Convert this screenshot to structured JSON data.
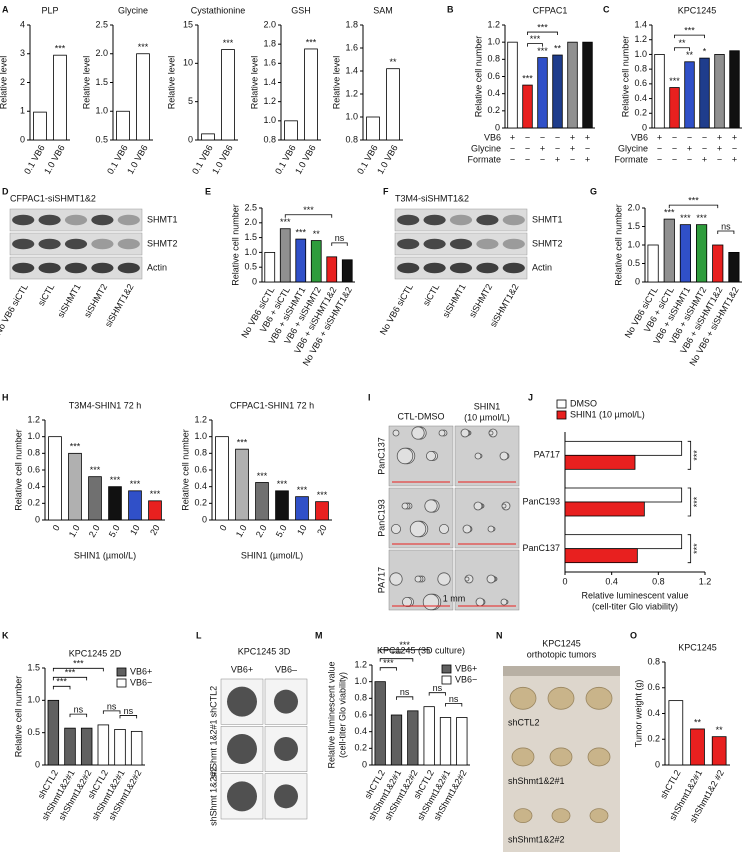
{
  "chart_data": [
    {
      "type": "bar",
      "panel": "A",
      "title": "PLP",
      "ylabel": "Relative level",
      "categories": [
        "0.1 VB6",
        "1.0 VB6"
      ],
      "values": [
        0.97,
        2.95
      ],
      "color": "#ffffff",
      "ylim": [
        0,
        4
      ],
      "yticks": [
        0,
        1,
        2,
        3,
        4
      ],
      "annotations": [
        null,
        "***"
      ]
    },
    {
      "type": "bar",
      "title": "Glycine",
      "ylabel": "Relative level",
      "categories": [
        "0.1 VB6",
        "1.0 VB6"
      ],
      "values": [
        1.0,
        2.0
      ],
      "color": "#ffffff",
      "ylim": [
        0.5,
        2.5
      ],
      "yticks": [
        0.5,
        {
          "value": 1,
          "label": "1.0"
        },
        1.5,
        {
          "value": 2,
          "label": "2.0"
        },
        2.5
      ],
      "annotations": [
        null,
        "***"
      ]
    },
    {
      "type": "bar",
      "title": "Cystathionine",
      "ylabel": "Relative level",
      "categories": [
        "0.1 VB6",
        "1.0 VB6"
      ],
      "values": [
        0.8,
        11.8
      ],
      "color": "#ffffff",
      "ylim": [
        0,
        15
      ],
      "yticks": [
        0,
        5,
        10,
        15
      ],
      "annotations": [
        null,
        "***"
      ]
    },
    {
      "type": "bar",
      "title": "GSH",
      "ylabel": "Relative level",
      "categories": [
        "0.1 VB6",
        "1.0 VB6"
      ],
      "values": [
        1.0,
        1.75
      ],
      "color": "#ffffff",
      "ylim": [
        0.8,
        2.0
      ],
      "yticks": [
        0.8,
        {
          "value": 1,
          "label": "1.0"
        },
        1.2,
        1.4,
        1.6,
        1.8,
        {
          "value": 2,
          "label": "2.0"
        }
      ],
      "annotations": [
        null,
        "***"
      ]
    },
    {
      "type": "bar",
      "title": "SAM",
      "ylabel": "Relative level",
      "categories": [
        "0.1 VB6",
        "1.0 VB6"
      ],
      "values": [
        1.0,
        1.42
      ],
      "color": "#ffffff",
      "ylim": [
        0.8,
        1.8
      ],
      "yticks": [
        0.8,
        {
          "value": 1,
          "label": "1.0"
        },
        1.2,
        1.4,
        1.6,
        1.8
      ],
      "annotations": [
        null,
        "**"
      ]
    },
    {
      "type": "bar",
      "panel": "B",
      "title": "CFPAC1",
      "ylabel": "Relative cell number",
      "values": [
        1.0,
        0.5,
        0.82,
        0.85,
        1.0,
        1.0
      ],
      "colors": [
        "#ffffff",
        "#e8201f",
        "#3050c8",
        "#1f3d8c",
        "#909090",
        "#111111"
      ],
      "ylim": [
        0,
        1.2
      ],
      "yticks": [
        0,
        0.2,
        0.4,
        0.6,
        0.8,
        {
          "value": 1,
          "label": "1.0"
        },
        1.2
      ],
      "annotations": [
        null,
        "***",
        "***",
        "**",
        null,
        null
      ],
      "brackets": [
        {
          "from": 1,
          "to": 2,
          "text": "***"
        },
        {
          "from": 1,
          "to": 3,
          "text": "***"
        }
      ],
      "rows": [
        {
          "name": "VB6",
          "signs": [
            "+",
            "−",
            "−",
            "−",
            "+",
            "+"
          ]
        },
        {
          "name": "Glycine",
          "signs": [
            "−",
            "−",
            "+",
            "−",
            "+",
            "−"
          ]
        },
        {
          "name": "Formate",
          "signs": [
            "−",
            "−",
            "−",
            "+",
            "−",
            "+"
          ]
        }
      ]
    },
    {
      "type": "bar",
      "panel": "C",
      "title": "KPC1245",
      "ylabel": "Relative cell number",
      "values": [
        1.0,
        0.55,
        0.9,
        0.95,
        1.0,
        1.05
      ],
      "colors": [
        "#ffffff",
        "#e8201f",
        "#3050c8",
        "#1f3d8c",
        "#909090",
        "#111111"
      ],
      "ylim": [
        0,
        1.4
      ],
      "yticks": [
        0,
        0.2,
        0.4,
        0.6,
        0.8,
        {
          "value": 1,
          "label": "1.0"
        },
        1.2,
        1.4
      ],
      "annotations": [
        null,
        "***",
        "**",
        "*",
        null,
        null
      ],
      "brackets": [
        {
          "from": 1,
          "to": 2,
          "text": "**"
        },
        {
          "from": 1,
          "to": 3,
          "text": "***"
        }
      ],
      "rows": [
        {
          "name": "VB6",
          "signs": [
            "+",
            "−",
            "−",
            "−",
            "+",
            "+"
          ]
        },
        {
          "name": "Glycine",
          "signs": [
            "−",
            "−",
            "+",
            "−",
            "+",
            "−"
          ]
        },
        {
          "name": "Formate",
          "signs": [
            "−",
            "−",
            "−",
            "+",
            "−",
            "+"
          ]
        }
      ]
    },
    {
      "type": "bar",
      "panel": "E",
      "ylabel": "Relative cell number",
      "categories": [
        "No VB6 siCTL",
        "VB6 + siCTL",
        "VB6 + siSHMT1",
        "VB6 + siSHMT2",
        "VB6 + siSHMT1&2",
        "No VB6 + siSHMT1&2"
      ],
      "values": [
        1.0,
        1.8,
        1.45,
        1.4,
        0.85,
        0.75
      ],
      "colors": [
        "#ffffff",
        "#909090",
        "#3050c8",
        "#2e9c3c",
        "#e8201f",
        "#111111"
      ],
      "ylim": [
        0,
        2.5
      ],
      "yticks": [
        0,
        0.5,
        {
          "value": 1,
          "label": "1.0"
        },
        1.5,
        {
          "value": 2,
          "label": "2.0"
        },
        2.5
      ],
      "annotations": [
        null,
        "***",
        "***",
        "**",
        null,
        null
      ],
      "brackets": [
        {
          "from": 1,
          "to": 4,
          "text": "***"
        },
        {
          "from": 4,
          "to": 5,
          "text": "ns"
        }
      ]
    },
    {
      "type": "bar",
      "panel": "G",
      "ylabel": "Relative cell number",
      "categories": [
        "No VB6 siCTL",
        "VB6 + siCTL",
        "VB6 + siSHMT1",
        "VB6 + siSHMT2",
        "VB6 + siSHMT1&2",
        "No VB6 + siSHMT1&2"
      ],
      "values": [
        1.0,
        1.7,
        1.55,
        1.55,
        1.0,
        0.8
      ],
      "colors": [
        "#ffffff",
        "#909090",
        "#3050c8",
        "#2e9c3c",
        "#e8201f",
        "#111111"
      ],
      "ylim": [
        0,
        2.0
      ],
      "yticks": [
        0,
        0.5,
        {
          "value": 1,
          "label": "1.0"
        },
        1.5,
        {
          "value": 2,
          "label": "2.0"
        }
      ],
      "annotations": [
        null,
        "***",
        "***",
        "***",
        null,
        null
      ],
      "brackets": [
        {
          "from": 1,
          "to": 4,
          "text": "***"
        },
        {
          "from": 4,
          "to": 5,
          "text": "ns"
        }
      ]
    },
    {
      "type": "bar",
      "panel": "H",
      "title": "T3M4-SHIN1 72 h",
      "ylabel": "Relative cell number",
      "xlabel": "SHIN1 (µmol/L)",
      "categories": [
        "0",
        "1.0",
        "2.0",
        "5.0",
        "10",
        "20"
      ],
      "values": [
        1.0,
        0.8,
        0.52,
        0.4,
        0.35,
        0.23
      ],
      "colors": [
        "#ffffff",
        "#b0b0b0",
        "#707070",
        "#111111",
        "#3050c8",
        "#e8201f"
      ],
      "ylim": [
        0,
        1.2
      ],
      "yticks": [
        0,
        0.2,
        0.4,
        0.6,
        0.8,
        {
          "value": 1,
          "label": "1.0"
        },
        1.2
      ],
      "annotations": [
        null,
        "***",
        "***",
        "***",
        "***",
        "***"
      ]
    },
    {
      "type": "bar",
      "title": "CFPAC1-SHIN1 72 h",
      "ylabel": "Relative cell number",
      "xlabel": "SHIN1 (µmol/L)",
      "categories": [
        "0",
        "1.0",
        "2.0",
        "5.0",
        "10",
        "20"
      ],
      "values": [
        1.0,
        0.85,
        0.45,
        0.35,
        0.28,
        0.22
      ],
      "colors": [
        "#ffffff",
        "#b0b0b0",
        "#707070",
        "#111111",
        "#3050c8",
        "#e8201f"
      ],
      "ylim": [
        0,
        1.2
      ],
      "yticks": [
        0,
        0.2,
        0.4,
        0.6,
        0.8,
        {
          "value": 1,
          "label": "1.0"
        },
        1.2
      ],
      "annotations": [
        null,
        "***",
        "***",
        "***",
        "***",
        "***"
      ]
    },
    {
      "type": "hbar",
      "panel": "J",
      "xlabel": [
        "Relative luminescent value",
        "(cell-titer Glo viability)"
      ],
      "categories": [
        "PA717",
        "PanC193",
        "PanC137"
      ],
      "series": [
        {
          "name": "DMSO",
          "color": "#ffffff",
          "values": [
            1.0,
            1.0,
            1.0
          ]
        },
        {
          "name": "SHIN1 (10 µmol/L)",
          "color": "#e8201f",
          "values": [
            0.6,
            0.68,
            0.62
          ]
        }
      ],
      "xlim": [
        0,
        1.2
      ],
      "xticks": [
        0,
        0.4,
        0.8,
        1.2
      ],
      "annotations": [
        "***",
        "***",
        "***"
      ]
    },
    {
      "type": "bar",
      "panel": "K",
      "title": "KPC1245 2D",
      "ylabel": "Relative cell number",
      "categories": [
        "shCTL2",
        "shShmt1&2#1",
        "shShmt1&2#2",
        "shCTL2",
        "shShmt1&2#1",
        "shShmt1&2#2"
      ],
      "values": [
        1.0,
        0.57,
        0.57,
        0.62,
        0.55,
        0.52
      ],
      "colors": [
        "#606060",
        "#606060",
        "#606060",
        "#ffffff",
        "#ffffff",
        "#ffffff"
      ],
      "legend": [
        {
          "name": "VB6+",
          "color": "#606060"
        },
        {
          "name": "VB6−",
          "color": "#ffffff"
        }
      ],
      "ylim": [
        0,
        1.5
      ],
      "yticks": [
        0,
        0.5,
        {
          "value": 1,
          "label": "1.0"
        },
        1.5
      ],
      "brackets": [
        {
          "from": 0,
          "to": 1,
          "text": "***"
        },
        {
          "from": 0,
          "to": 2,
          "text": "***"
        },
        {
          "from": 0,
          "to": 3,
          "text": "***"
        },
        {
          "from": 1,
          "to": 2,
          "text": "ns"
        },
        {
          "from": 3,
          "to": 4,
          "text": "ns"
        },
        {
          "from": 4,
          "to": 5,
          "text": "ns"
        }
      ]
    },
    {
      "type": "bar",
      "panel": "M",
      "title": "KPC1245 (3D culture)",
      "ylabel": [
        "Relative luminescent value",
        "(cell-titer Glo viability)"
      ],
      "categories": [
        "shCTL2",
        "shShmt1&2#1",
        "shShmt1&2#2",
        "shCTL2",
        "shShmt1&2#1",
        "shShmt1&2#2"
      ],
      "values": [
        1.0,
        0.6,
        0.65,
        0.7,
        0.57,
        0.57
      ],
      "colors": [
        "#606060",
        "#606060",
        "#606060",
        "#ffffff",
        "#ffffff",
        "#ffffff"
      ],
      "legend": [
        {
          "name": "VB6+",
          "color": "#606060"
        },
        {
          "name": "VB6−",
          "color": "#ffffff"
        }
      ],
      "ylim": [
        0,
        1.2
      ],
      "yticks": [
        0,
        0.2,
        0.4,
        0.6,
        0.8,
        {
          "value": 1,
          "label": "1.0"
        },
        1.2
      ],
      "brackets": [
        {
          "from": 0,
          "to": 1,
          "text": "***"
        },
        {
          "from": 0,
          "to": 2,
          "text": "***"
        },
        {
          "from": 0,
          "to": 3,
          "text": "***"
        },
        {
          "from": 1,
          "to": 2,
          "text": "ns"
        },
        {
          "from": 3,
          "to": 4,
          "text": "ns"
        },
        {
          "from": 4,
          "to": 5,
          "text": "ns"
        }
      ]
    },
    {
      "type": "bar",
      "panel": "O",
      "title": "KPC1245",
      "ylabel": "Tumor weight (g)",
      "categories": [
        "shCTL2",
        "shShmt1&2#1",
        "shShmt1&2 #2"
      ],
      "values": [
        0.5,
        0.28,
        0.22
      ],
      "colors": [
        "#ffffff",
        "#e8201f",
        "#e8201f"
      ],
      "ylim": [
        0,
        0.8
      ],
      "yticks": [
        0,
        0.2,
        0.4,
        0.6,
        0.8
      ],
      "annotations": [
        null,
        "**",
        "**"
      ]
    }
  ],
  "image_panels": [
    {
      "kind": "blot",
      "panel": "D",
      "title": "CFPAC1-siSHMT1&2",
      "bands": [
        "SHMT1",
        "SHMT2",
        "Actin"
      ],
      "lanes": [
        "No VB6 siCTL",
        "siCTL",
        "siSHMT1",
        "siSHMT2",
        "siSHMT1&2"
      ]
    },
    {
      "kind": "blot",
      "panel": "F",
      "title": "T3M4-siSHMT1&2",
      "bands": [
        "SHMT1",
        "SHMT2",
        "Actin"
      ],
      "lanes": [
        "No VB6 siCTL",
        "siCTL",
        "siSHMT1",
        "siSHMT2",
        "siSHMT1&2"
      ]
    },
    {
      "kind": "micro",
      "panel": "I",
      "columns": [
        "CTL-DMSO",
        [
          "SHIN1",
          "(10 µmol/L)"
        ]
      ],
      "rows": [
        "PanC137",
        "PanC193",
        "PA717"
      ],
      "scale": "1 mm"
    },
    {
      "kind": "spheroid",
      "panel": "L",
      "title": "KPC1245 3D",
      "columns": [
        "VB6+",
        "VB6–"
      ],
      "rows": [
        "shCTL2",
        "shShmt 1&2#1",
        "shShmt 1&2#2"
      ]
    },
    {
      "kind": "tumor",
      "panel": "N",
      "title": [
        "KPC1245",
        "orthotopic tumors"
      ],
      "rows": [
        "shCTL2",
        "shShmt1&2#1",
        "shShmt1&2#2"
      ]
    }
  ]
}
